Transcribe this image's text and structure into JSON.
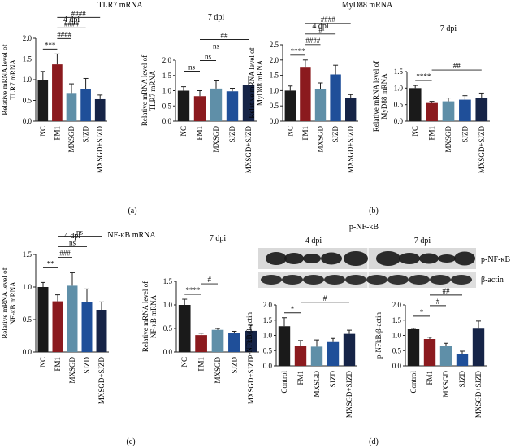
{
  "colors": {
    "NC": "#1a1a1a",
    "FM1": "#8b1a1e",
    "MXSGD": "#5f8fa8",
    "SJZD": "#1f4f99",
    "MXSGD+SJZD": "#162447",
    "Control": "#1a1a1a",
    "blot_bg": "#d9d9d9",
    "blot_band": "#1b1b1b"
  },
  "sections": {
    "tlr7_title": "TLR7 mRNA",
    "myd88_title": "MyD88 mRNA",
    "nfkb_title": "NF-κB mRNA",
    "pnfkb_title": "p-NF-κB",
    "label_a": "(a)",
    "label_b": "(b)",
    "label_c": "(c)",
    "label_d": "(d)"
  },
  "western_blot": {
    "group_left": "4 dpi",
    "group_right": "7 dpi",
    "band_labels": [
      "p-NF-κB",
      "β-actin"
    ]
  },
  "chart_data": [
    {
      "type": "bar",
      "panel": "a",
      "title": "4 dpi",
      "ylabel": "Relative mRNA level of TLR7 mRNA",
      "ylim": [
        0,
        2.0
      ],
      "yticks": [
        "0.0",
        "0.5",
        "1.0",
        "1.5",
        "2.0"
      ],
      "categories": [
        "NC",
        "FM1",
        "MXSGD",
        "SJZD",
        "MXSGD+SJZD"
      ],
      "values": [
        1.0,
        1.37,
        0.68,
        0.78,
        0.53
      ],
      "errors": [
        0.2,
        0.25,
        0.22,
        0.25,
        0.1
      ],
      "annotations": [
        {
          "from": 0,
          "to": 1,
          "text": "***"
        },
        {
          "from": 1,
          "to": 2,
          "text": "####"
        },
        {
          "from": 1,
          "to": 3,
          "text": "####"
        },
        {
          "from": 1,
          "to": 4,
          "text": "####"
        }
      ]
    },
    {
      "type": "bar",
      "panel": "a",
      "title": "7 dpi",
      "ylabel": "Relative mRNA level of TLR7 mRNA",
      "ylim": [
        0,
        2.0
      ],
      "yticks": [
        "0.0",
        "0.5",
        "1.0",
        "1.5",
        "2.0"
      ],
      "categories": [
        "NC",
        "FM1",
        "MXSGD",
        "SJZD",
        "MXSGD+SJZD"
      ],
      "values": [
        1.0,
        0.82,
        1.07,
        0.98,
        1.2
      ],
      "errors": [
        0.13,
        0.18,
        0.25,
        0.1,
        0.28
      ],
      "annotations": [
        {
          "from": 0,
          "to": 1,
          "text": "ns"
        },
        {
          "from": 1,
          "to": 2,
          "text": "ns"
        },
        {
          "from": 1,
          "to": 3,
          "text": "ns"
        },
        {
          "from": 1,
          "to": 4,
          "text": "##"
        }
      ]
    },
    {
      "type": "bar",
      "panel": "b",
      "title": "4 dpi",
      "ylabel": "Relative mRNA level of MyD88 mRNA",
      "ylim": [
        0,
        2.5
      ],
      "yticks": [
        "0.0",
        "0.5",
        "1.0",
        "1.5",
        "2.0",
        "2.5"
      ],
      "categories": [
        "NC",
        "FM1",
        "MXSGD",
        "SJZD",
        "MXSGD+SJZD"
      ],
      "values": [
        1.0,
        1.75,
        1.05,
        1.53,
        0.75
      ],
      "errors": [
        0.15,
        0.25,
        0.2,
        0.3,
        0.12
      ],
      "annotations": [
        {
          "from": 0,
          "to": 1,
          "text": "****"
        },
        {
          "from": 1,
          "to": 2,
          "text": "####"
        },
        {
          "from": 1,
          "to": 3,
          "text": "#"
        },
        {
          "from": 1,
          "to": 4,
          "text": "####"
        }
      ]
    },
    {
      "type": "bar",
      "panel": "b",
      "title": "7 dpi",
      "ylabel": "Relative mRNA level of MyD88 mRNA",
      "ylim": [
        0,
        1.5
      ],
      "yticks": [
        "0.0",
        "0.5",
        "1.0",
        "1.5"
      ],
      "categories": [
        "NC",
        "FM1",
        "MXSGD",
        "SJZD",
        "MXSGD+SJZD"
      ],
      "values": [
        1.0,
        0.55,
        0.6,
        0.65,
        0.7
      ],
      "errors": [
        0.08,
        0.05,
        0.1,
        0.12,
        0.15
      ],
      "annotations": [
        {
          "from": 0,
          "to": 1,
          "text": "****"
        },
        {
          "from": 1,
          "to": 4,
          "text": "##"
        }
      ]
    },
    {
      "type": "bar",
      "panel": "c",
      "title": "4 dpi",
      "ylabel": "Relative mRNA level of NF-κB mRNA",
      "ylim": [
        0,
        1.5
      ],
      "yticks": [
        "0.0",
        "0.5",
        "1.0",
        "1.5"
      ],
      "categories": [
        "NC",
        "FM1",
        "MXSGD",
        "SJZD",
        "MXSGD+SJZD"
      ],
      "values": [
        1.0,
        0.78,
        1.02,
        0.77,
        0.65
      ],
      "errors": [
        0.07,
        0.1,
        0.2,
        0.2,
        0.12
      ],
      "annotations": [
        {
          "from": 0,
          "to": 1,
          "text": "**"
        },
        {
          "from": 1,
          "to": 2,
          "text": "###"
        },
        {
          "from": 1,
          "to": 3,
          "text": "ns"
        },
        {
          "from": 1,
          "to": 4,
          "text": "ns"
        }
      ]
    },
    {
      "type": "bar",
      "panel": "c",
      "title": "7 dpi",
      "ylabel": "Relative mRNA level of NF-κB mRNA",
      "ylim": [
        0,
        1.5
      ],
      "yticks": [
        "0.0",
        "0.5",
        "1.0",
        "1.5"
      ],
      "categories": [
        "NC",
        "FM1",
        "MXSGD",
        "SJZD",
        "MXSGD+SJZD"
      ],
      "values": [
        1.0,
        0.36,
        0.47,
        0.4,
        0.45
      ],
      "errors": [
        0.12,
        0.04,
        0.03,
        0.04,
        0.12
      ],
      "annotations": [
        {
          "from": 0,
          "to": 1,
          "text": "****"
        },
        {
          "from": 1,
          "to": 2,
          "text": "#"
        }
      ]
    },
    {
      "type": "bar",
      "panel": "d",
      "title": "",
      "ylabel": "p-NFkB/β-actin",
      "ylim": [
        0,
        2.0
      ],
      "yticks": [
        "0.0",
        "0.5",
        "1.0",
        "1.5",
        "2.0"
      ],
      "categories": [
        "Control",
        "FM1",
        "MXSGD",
        "SJZD",
        "MXSGD+SJZD"
      ],
      "values": [
        1.3,
        0.65,
        0.63,
        0.78,
        1.05
      ],
      "errors": [
        0.28,
        0.18,
        0.22,
        0.12,
        0.12
      ],
      "annotations": [
        {
          "from": 0,
          "to": 1,
          "text": "*"
        },
        {
          "from": 1,
          "to": 4,
          "text": "#"
        }
      ]
    },
    {
      "type": "bar",
      "panel": "d",
      "title": "",
      "ylabel": "p-NFkB/β-actin",
      "ylim": [
        0,
        2.0
      ],
      "yticks": [
        "0.0",
        "0.5",
        "1.0",
        "1.5",
        "2.0"
      ],
      "categories": [
        "Control",
        "FM1",
        "MXSGD",
        "SJZD",
        "MXSGD+SJZD"
      ],
      "values": [
        1.2,
        0.88,
        0.66,
        0.38,
        1.22
      ],
      "errors": [
        0.03,
        0.06,
        0.08,
        0.1,
        0.25
      ],
      "annotations": [
        {
          "from": 0,
          "to": 1,
          "text": "*"
        },
        {
          "from": 1,
          "to": 2,
          "text": "#"
        },
        {
          "from": 1,
          "to": 3,
          "text": "##"
        }
      ]
    }
  ]
}
